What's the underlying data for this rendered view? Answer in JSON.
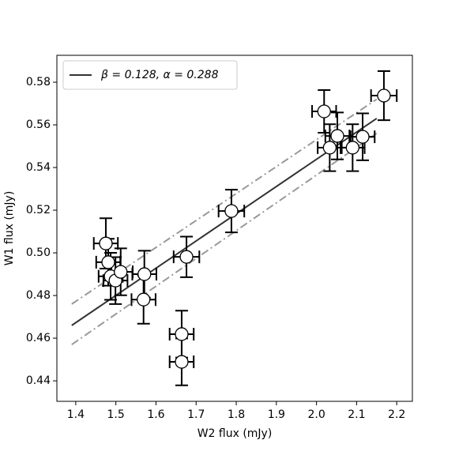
{
  "chart_data": {
    "type": "scatter",
    "xlabel": "W2 flux (mJy)",
    "ylabel": "W1 flux (mJy)",
    "xlim": [
      1.353,
      2.239
    ],
    "ylim": [
      0.4304,
      0.5926
    ],
    "xticks": [
      1.4,
      1.5,
      1.6,
      1.7,
      1.8,
      1.9,
      {
        "value": 2,
        "label": "2.0"
      },
      2.1,
      2.2
    ],
    "yticks": [
      0.44,
      0.46,
      0.48,
      {
        "value": 0.5,
        "label": "0.50"
      },
      0.52,
      0.54,
      0.56,
      0.58
    ],
    "legend": "upper left",
    "points": {
      "color": "#ffffff",
      "edge_color": "#000000",
      "x": [
        2.168,
        2.019,
        2.052,
        2.033,
        2.09,
        2.115,
        1.788,
        1.676,
        1.475,
        1.481,
        1.487,
        1.499,
        1.512,
        1.571,
        1.569,
        1.664,
        1.664
      ],
      "values": [
        0.5737,
        0.5663,
        0.5548,
        0.5493,
        0.5493,
        0.5544,
        0.5196,
        0.4981,
        0.5044,
        0.4956,
        0.489,
        0.487,
        0.4911,
        0.49,
        0.4781,
        0.4619,
        0.4489
      ],
      "xerr": [
        0.032,
        0.03,
        0.03,
        0.03,
        0.03,
        0.03,
        0.032,
        0.032,
        0.03,
        0.03,
        0.03,
        0.03,
        0.03,
        0.03,
        0.03,
        0.03,
        0.03
      ],
      "yerr": [
        0.0115,
        0.01,
        0.011,
        0.011,
        0.011,
        0.011,
        0.01,
        0.0095,
        0.0118,
        0.011,
        0.011,
        0.011,
        0.011,
        0.011,
        0.0113,
        0.011,
        0.011
      ]
    },
    "series": [
      {
        "name": "β = 0.128, α = 0.288",
        "color": "#333333",
        "style": "solid",
        "x": [
          1.39,
          2.15
        ],
        "values": [
          0.466,
          0.563
        ]
      },
      {
        "color": "#999999",
        "style": "dashdot",
        "x": [
          1.39,
          2.15
        ],
        "values": [
          0.476,
          0.572
        ]
      },
      {
        "color": "#999999",
        "style": "dashdot",
        "x": [
          1.39,
          2.15
        ],
        "values": [
          0.457,
          0.556
        ]
      }
    ]
  }
}
